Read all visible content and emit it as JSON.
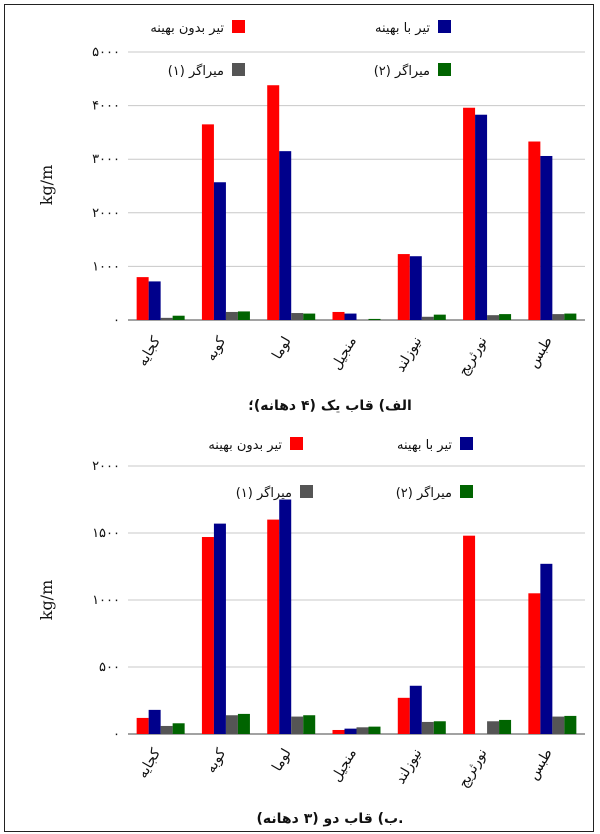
{
  "colors": {
    "red": "#ff0000",
    "blue": "#00008b",
    "gray": "#555555",
    "green": "#006400"
  },
  "legend": {
    "unoptimized": "تیر بدون بهینه",
    "optimized": "تیر با بهینه",
    "damper1": "میراگر (۱)",
    "damper2": "میراگر (۲)"
  },
  "chart_data": [
    {
      "type": "bar",
      "caption": "الف) قاب یک (۴ دهانه)؛",
      "ylabel": "kg/m",
      "ylim": [
        0,
        5000
      ],
      "yticks": [
        {
          "value": 0,
          "label": "۰"
        },
        {
          "value": 1000,
          "label": "۱۰۰۰"
        },
        {
          "value": 2000,
          "label": "۲۰۰۰"
        },
        {
          "value": 3000,
          "label": "۳۰۰۰"
        },
        {
          "value": 4000,
          "label": "۴۰۰۰"
        },
        {
          "value": 5000,
          "label": "۵۰۰۰"
        }
      ],
      "categories": [
        "کجایه",
        "کوبه",
        "لوما",
        "منجیل",
        "نیوزلند",
        "نورثریج",
        "طبس"
      ],
      "series": [
        {
          "name": "تیر بدون بهینه",
          "values": [
            800,
            3650,
            4380,
            150,
            1230,
            3960,
            3330
          ]
        },
        {
          "name": "تیر با بهینه",
          "values": [
            720,
            2570,
            3150,
            120,
            1190,
            3830,
            3060
          ]
        },
        {
          "name": "میراگر (۱)",
          "values": [
            40,
            150,
            130,
            10,
            60,
            90,
            110
          ]
        },
        {
          "name": "میراگر (۲)",
          "values": [
            80,
            160,
            120,
            20,
            100,
            110,
            120
          ]
        }
      ]
    },
    {
      "type": "bar",
      "caption": "ب) قاب دو (۳ دهانه).",
      "ylabel": "kg/m",
      "ylim": [
        0,
        2000
      ],
      "yticks": [
        {
          "value": 0,
          "label": "۰"
        },
        {
          "value": 500,
          "label": "۵۰۰"
        },
        {
          "value": 1000,
          "label": "۱۰۰۰"
        },
        {
          "value": 1500,
          "label": "۱۵۰۰"
        },
        {
          "value": 2000,
          "label": "۲۰۰۰"
        }
      ],
      "categories": [
        "کجایه",
        "کوبه",
        "لوما",
        "منجیل",
        "نیوزلند",
        "نورثریج",
        "طبس"
      ],
      "series": [
        {
          "name": "تیر بدون بهینه",
          "values": [
            120,
            1470,
            1600,
            30,
            270,
            1480,
            1050
          ]
        },
        {
          "name": "تیر با بهینه",
          "values": [
            180,
            1570,
            1750,
            40,
            360,
            0,
            1270
          ]
        },
        {
          "name": "میراگر (۱)",
          "values": [
            60,
            140,
            130,
            50,
            90,
            95,
            130
          ]
        },
        {
          "name": "میراگر (۲)",
          "values": [
            80,
            150,
            140,
            55,
            95,
            105,
            135
          ]
        }
      ]
    }
  ]
}
